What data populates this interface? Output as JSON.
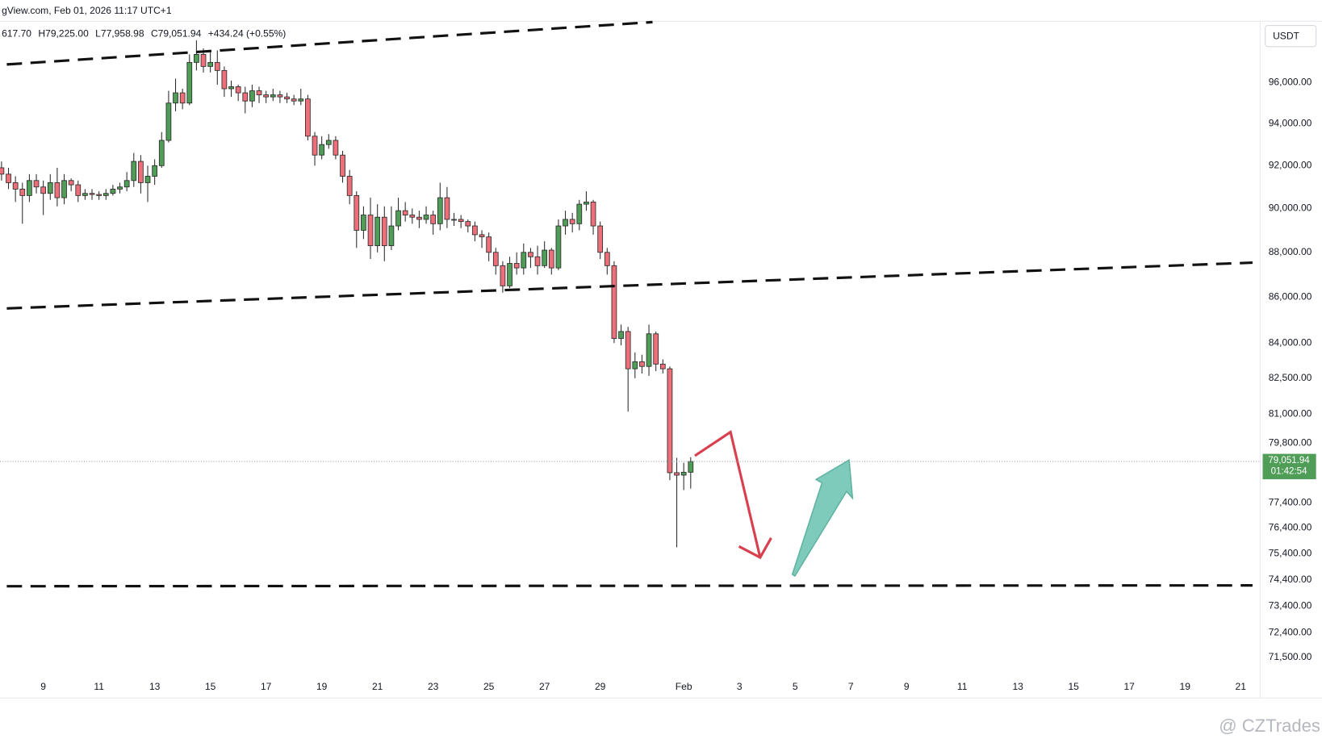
{
  "chart_data": {
    "type": "candlestick",
    "header": "gView.com, Feb 01, 2026 11:17 UTC+1",
    "legend_values": [
      "617.70",
      "H79,225.00",
      "L77,958.98",
      "C79,051.94",
      "+434.24 (+0.55%)"
    ],
    "currency": "USDT",
    "watermark": "@ CZTrades",
    "log_scale": true,
    "grid": false,
    "up_color": "#4f9d57",
    "down_color": "#ec6f7a",
    "xlim": [
      7.445,
      52.7
    ],
    "ylim": [
      70910,
      99070
    ],
    "xticks": [
      9,
      11,
      13,
      15,
      17,
      19,
      21,
      23,
      25,
      27,
      29,
      {
        "value": 32,
        "label": "Feb"
      },
      {
        "value": 34,
        "label": "3"
      },
      {
        "value": 36,
        "label": "5"
      },
      {
        "value": 38,
        "label": "7"
      },
      {
        "value": 40,
        "label": "9"
      },
      {
        "value": 42,
        "label": "11"
      },
      {
        "value": 44,
        "label": "13"
      },
      {
        "value": 46,
        "label": "15"
      },
      {
        "value": 48,
        "label": "17"
      },
      {
        "value": 50,
        "label": "19"
      },
      {
        "value": 52,
        "label": "21"
      }
    ],
    "yticks": [
      {
        "value": 96000,
        "label": "96,000.00"
      },
      {
        "value": 94000,
        "label": "94,000.00"
      },
      {
        "value": 92000,
        "label": "92,000.00"
      },
      {
        "value": 90000,
        "label": "90,000.00"
      },
      {
        "value": 88000,
        "label": "88,000.00"
      },
      {
        "value": 86000,
        "label": "86,000.00"
      },
      {
        "value": 84000,
        "label": "84,000.00"
      },
      {
        "value": 82500,
        "label": "82,500.00"
      },
      {
        "value": 81000,
        "label": "81,000.00"
      },
      {
        "value": 79800,
        "label": "79,800.00"
      },
      {
        "value": 77400,
        "label": "77,400.00"
      },
      {
        "value": 76400,
        "label": "76,400.00"
      },
      {
        "value": 75400,
        "label": "75,400.00"
      },
      {
        "value": 74400,
        "label": "74,400.00"
      },
      {
        "value": 73400,
        "label": "73,400.00"
      },
      {
        "value": 72400,
        "label": "72,400.00"
      },
      {
        "value": 71500,
        "label": "71,500.00"
      }
    ],
    "last_price": {
      "value": 79051.94,
      "label": "79,051.94"
    },
    "countdown": "01:42:54",
    "x": [
      7.5,
      7.75,
      8,
      8.25,
      8.5,
      8.75,
      9,
      9.25,
      9.5,
      9.75,
      10,
      10.25,
      10.5,
      10.75,
      11,
      11.25,
      11.5,
      11.75,
      12,
      12.25,
      12.5,
      12.75,
      13,
      13.25,
      13.5,
      13.75,
      14,
      14.25,
      14.5,
      14.75,
      15,
      15.25,
      15.5,
      15.75,
      16,
      16.25,
      16.5,
      16.75,
      17,
      17.25,
      17.5,
      17.75,
      18,
      18.25,
      18.5,
      18.75,
      19,
      19.25,
      19.5,
      19.75,
      20,
      20.25,
      20.5,
      20.75,
      21,
      21.25,
      21.5,
      21.75,
      22,
      22.25,
      22.5,
      22.75,
      23,
      23.25,
      23.5,
      23.75,
      24,
      24.25,
      24.5,
      24.75,
      25,
      25.25,
      25.5,
      25.75,
      26,
      26.25,
      26.5,
      26.75,
      27,
      27.25,
      27.5,
      27.75,
      28,
      28.25,
      28.5,
      28.75,
      29,
      29.25,
      29.5,
      29.75,
      30,
      30.25,
      30.5,
      30.75,
      31,
      31.25,
      31.5,
      31.75,
      32,
      32.25
    ],
    "open": [
      91900,
      91600,
      91200,
      90900,
      90600,
      91300,
      91000,
      90700,
      91200,
      90500,
      91300,
      91100,
      90600,
      90700,
      90650,
      90600,
      90700,
      90900,
      91000,
      91300,
      92200,
      91200,
      91500,
      92000,
      93200,
      95000,
      95500,
      95000,
      97000,
      97400,
      96800,
      97000,
      96600,
      95700,
      95800,
      95500,
      95100,
      95600,
      95400,
      95300,
      95400,
      95300,
      95200,
      95100,
      95200,
      93400,
      92500,
      93000,
      93200,
      92500,
      91500,
      90600,
      89000,
      89700,
      88300,
      89600,
      88300,
      89200,
      89900,
      89700,
      89600,
      89500,
      89700,
      89300,
      90500,
      89500,
      89500,
      89400,
      89200,
      88800,
      88700,
      88000,
      87400,
      86500,
      87500,
      87300,
      88000,
      87800,
      87400,
      88100,
      87300,
      89200,
      89500,
      89300,
      90200,
      90300,
      89200,
      88000,
      87400,
      84200,
      84500,
      82900,
      83200,
      83000,
      84400,
      83100,
      82900,
      78600,
      78500,
      78617.7
    ],
    "high": [
      92200,
      91900,
      91500,
      91200,
      91600,
      91600,
      91300,
      91600,
      91900,
      91600,
      91400,
      91300,
      90900,
      90900,
      90800,
      90900,
      91100,
      91200,
      91700,
      92600,
      92500,
      92000,
      92300,
      93600,
      95600,
      96200,
      95700,
      97400,
      98100,
      97700,
      97500,
      97600,
      96800,
      96100,
      95900,
      95800,
      95900,
      95800,
      95600,
      95700,
      95600,
      95500,
      95400,
      95700,
      95400,
      93600,
      93400,
      93500,
      93400,
      92700,
      91800,
      90800,
      90100,
      90500,
      90200,
      90100,
      90100,
      90500,
      90300,
      90000,
      89900,
      90100,
      89900,
      91200,
      91000,
      89800,
      89700,
      89500,
      89400,
      89000,
      88900,
      88200,
      87600,
      87800,
      88000,
      88400,
      88200,
      88300,
      88500,
      88200,
      89500,
      89900,
      89800,
      90400,
      90800,
      90400,
      89400,
      88200,
      87600,
      84800,
      84700,
      83600,
      83500,
      84800,
      84500,
      83300,
      83000,
      79200,
      79000,
      79225
    ],
    "low": [
      91300,
      90900,
      90300,
      89300,
      90300,
      90700,
      89700,
      90400,
      90100,
      90200,
      90800,
      90300,
      90400,
      90400,
      90400,
      90400,
      90600,
      90700,
      90800,
      91000,
      90700,
      90300,
      91100,
      91900,
      93100,
      94600,
      94700,
      94900,
      96600,
      96500,
      96500,
      95900,
      95300,
      95300,
      95100,
      94500,
      94800,
      95000,
      95000,
      95100,
      95000,
      95000,
      94900,
      94900,
      93200,
      92000,
      92300,
      92800,
      92300,
      91200,
      90200,
      88200,
      88600,
      87700,
      88000,
      87600,
      88100,
      89000,
      89400,
      89300,
      89100,
      89300,
      88800,
      89000,
      89100,
      89200,
      89100,
      88900,
      88500,
      88200,
      87600,
      87000,
      86200,
      86400,
      87000,
      87000,
      87300,
      87000,
      87300,
      87000,
      87200,
      88800,
      88900,
      89000,
      89900,
      88800,
      87700,
      87000,
      84000,
      83900,
      81100,
      82500,
      82700,
      82600,
      82800,
      82700,
      78300,
      75650,
      77900,
      77958.98
    ],
    "close": [
      91600,
      91200,
      90900,
      90600,
      91300,
      91000,
      90700,
      91200,
      90500,
      91300,
      91100,
      90600,
      90700,
      90650,
      90600,
      90700,
      90900,
      91000,
      91300,
      92200,
      91200,
      91500,
      92000,
      93200,
      95000,
      95500,
      95000,
      97000,
      97400,
      96800,
      97000,
      96600,
      95700,
      95800,
      95500,
      95100,
      95600,
      95400,
      95300,
      95400,
      95300,
      95200,
      95100,
      95200,
      93400,
      92500,
      93000,
      93200,
      92500,
      91500,
      90600,
      89000,
      89700,
      88300,
      89600,
      88300,
      89200,
      89900,
      89700,
      89600,
      89500,
      89700,
      89300,
      90500,
      89500,
      89500,
      89400,
      89200,
      88800,
      88700,
      88000,
      87400,
      86500,
      87500,
      87300,
      88000,
      87800,
      87400,
      88100,
      87300,
      89200,
      89500,
      89300,
      90200,
      90300,
      89200,
      88000,
      87400,
      84200,
      84500,
      82900,
      83200,
      83000,
      84400,
      83100,
      82900,
      78600,
      78500,
      78617.7,
      79051.94
    ]
  }
}
